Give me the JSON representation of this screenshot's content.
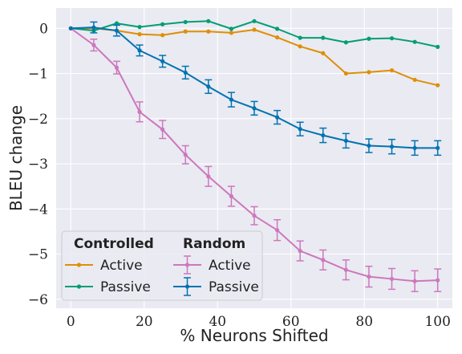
{
  "chart_data": {
    "type": "line",
    "xlabel": "% Neurons Shifted",
    "ylabel": "BLEU change",
    "xlim": [
      -4,
      104
    ],
    "ylim": [
      -6.2,
      0.45
    ],
    "xticks": [
      0,
      20,
      40,
      60,
      80,
      100
    ],
    "xtick_labels": [
      "0",
      "20",
      "40",
      "60",
      "80",
      "100"
    ],
    "yticks": [
      0,
      -1,
      -2,
      -3,
      -4,
      -5,
      -6
    ],
    "ytick_labels": [
      "0",
      "−1",
      "−2",
      "−3",
      "−4",
      "−5",
      "−6"
    ],
    "grid": true,
    "legend": {
      "placement": "lower-left",
      "group_titles": [
        "Controlled",
        "Random"
      ],
      "entries": [
        "Active",
        "Passive",
        "Active",
        "Passive"
      ]
    },
    "series": [
      {
        "name": "Active",
        "group": "Controlled",
        "color": "#de8f05",
        "error_bars": false,
        "x": [
          0,
          6.25,
          12.5,
          18.75,
          25,
          31.25,
          37.5,
          43.75,
          50,
          56.25,
          62.5,
          68.75,
          75,
          81.25,
          87.5,
          93.75,
          100
        ],
        "y": [
          0,
          0,
          -0.05,
          -0.13,
          -0.15,
          -0.07,
          -0.07,
          -0.1,
          -0.03,
          -0.2,
          -0.4,
          -0.55,
          -1.0,
          -0.97,
          -0.93,
          -1.14,
          -1.26
        ]
      },
      {
        "name": "Passive",
        "group": "Controlled",
        "color": "#029e73",
        "error_bars": false,
        "x": [
          0,
          6.25,
          12.5,
          18.75,
          25,
          31.25,
          37.5,
          43.75,
          50,
          56.25,
          62.5,
          68.75,
          75,
          81.25,
          87.5,
          93.75,
          100
        ],
        "y": [
          0,
          -0.05,
          0.11,
          0.03,
          0.09,
          0.14,
          0.16,
          -0.01,
          0.16,
          -0.01,
          -0.21,
          -0.21,
          -0.31,
          -0.23,
          -0.22,
          -0.3,
          -0.41
        ]
      },
      {
        "name": "Active",
        "group": "Random",
        "color": "#cc78bc",
        "error_bars": true,
        "x": [
          0,
          6.25,
          12.5,
          18.75,
          25,
          31.25,
          37.5,
          43.75,
          50,
          56.25,
          62.5,
          68.75,
          75,
          81.25,
          87.5,
          93.75,
          100
        ],
        "y": [
          0,
          -0.37,
          -0.87,
          -1.85,
          -2.24,
          -2.8,
          -3.28,
          -3.72,
          -4.15,
          -4.47,
          -4.93,
          -5.13,
          -5.35,
          -5.5,
          -5.55,
          -5.6,
          -5.58
        ],
        "err": [
          0,
          0.13,
          0.14,
          0.22,
          0.2,
          0.2,
          0.22,
          0.22,
          0.2,
          0.23,
          0.22,
          0.22,
          0.22,
          0.23,
          0.23,
          0.23,
          0.25
        ]
      },
      {
        "name": "Passive",
        "group": "Random",
        "color": "#0173b2",
        "error_bars": true,
        "x": [
          0,
          6.25,
          12.5,
          18.75,
          25,
          31.25,
          37.5,
          43.75,
          50,
          56.25,
          62.5,
          68.75,
          75,
          81.25,
          87.5,
          93.75,
          100
        ],
        "y": [
          0,
          0.02,
          -0.05,
          -0.49,
          -0.73,
          -0.98,
          -1.29,
          -1.58,
          -1.77,
          -1.97,
          -2.23,
          -2.37,
          -2.49,
          -2.6,
          -2.62,
          -2.65,
          -2.65
        ],
        "err": [
          0,
          0.12,
          0.12,
          0.12,
          0.13,
          0.14,
          0.15,
          0.16,
          0.15,
          0.15,
          0.15,
          0.16,
          0.16,
          0.15,
          0.16,
          0.16,
          0.16
        ]
      }
    ]
  }
}
